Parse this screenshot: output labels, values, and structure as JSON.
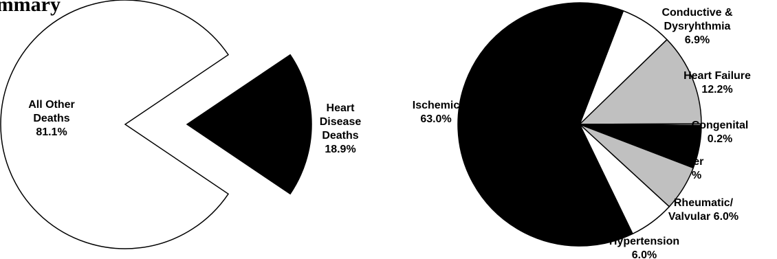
{
  "page": {
    "heading_fragment": "ummary"
  },
  "chart_data": [
    {
      "type": "pie",
      "title": "",
      "slices": [
        {
          "label_lines": [
            "All Other",
            "Deaths",
            "81.1%"
          ],
          "label": "All Other Deaths",
          "value": 81.1,
          "color": "#ffffff",
          "exploded": false
        },
        {
          "label_lines": [
            "Heart",
            "Disease",
            "Deaths",
            "18.9%"
          ],
          "label": "Heart Disease Deaths",
          "value": 18.9,
          "color": "#000000",
          "exploded": true
        }
      ]
    },
    {
      "type": "pie",
      "title": "",
      "slices": [
        {
          "label_lines": [
            "Conductive &",
            "Dysryhthmia",
            "6.9%"
          ],
          "label": "Conductive & Dysryhthmia",
          "value": 6.9,
          "color": "#ffffff"
        },
        {
          "label_lines": [
            "Heart Failure",
            "12.2%"
          ],
          "label": "Heart Failure",
          "value": 12.2,
          "color": "#c0c0c0"
        },
        {
          "label_lines": [
            "Congenital",
            "0.2%"
          ],
          "label": "Congenital",
          "value": 0.2,
          "color": "#ffffff"
        },
        {
          "label_lines": [
            "Other",
            "5.7%"
          ],
          "label": "Other",
          "value": 5.7,
          "color": "#000000"
        },
        {
          "label_lines": [
            "Rheumatic/",
            "Valvular 6.0%"
          ],
          "label": "Rheumatic/ Valvular",
          "value": 6.0,
          "color": "#c0c0c0"
        },
        {
          "label_lines": [
            "Hypertension",
            "6.0%"
          ],
          "label": "Hypertension",
          "value": 6.0,
          "color": "#ffffff"
        },
        {
          "label_lines": [
            "Ischemic",
            "63.0%"
          ],
          "label": "Ischemic",
          "value": 63.0,
          "color": "#000000"
        }
      ]
    }
  ]
}
